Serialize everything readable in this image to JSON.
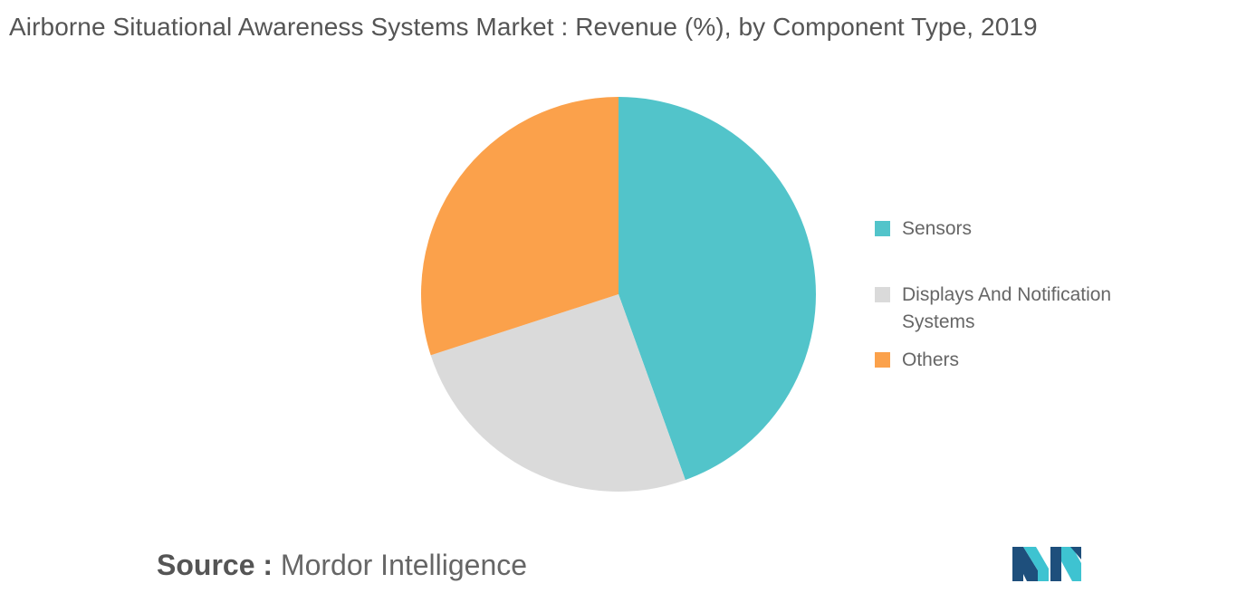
{
  "header": {
    "title": "Airborne Situational Awareness Systems Market : Revenue (%), by Component Type, 2019"
  },
  "chart_data": {
    "type": "pie",
    "title": "Airborne Situational Awareness Systems Market : Revenue (%), by Component Type, 2019",
    "slices": [
      {
        "label": "Sensors",
        "value": 44.5,
        "color": "#52C4CA"
      },
      {
        "label": "Displays And Notification Systems",
        "value": 25.5,
        "color": "#DADADA"
      },
      {
        "label": "Others",
        "value": 30.0,
        "color": "#FBA14B"
      }
    ],
    "start_angle": "12 o'clock",
    "direction": "clockwise",
    "legend_placement": "right"
  },
  "legend": {
    "items": [
      {
        "label": "Sensors",
        "color": "#52C4CA"
      },
      {
        "label": "Displays And Notification Systems",
        "color": "#DADADA"
      },
      {
        "label": "Others",
        "color": "#FBA14B"
      }
    ]
  },
  "footer": {
    "source_key": "Source :",
    "source_value": "Mordor Intelligence"
  },
  "logo": {
    "icon": "mordor-intelligence-logo-icon",
    "colors": [
      "#1E4F7C",
      "#3EC3D1"
    ]
  }
}
